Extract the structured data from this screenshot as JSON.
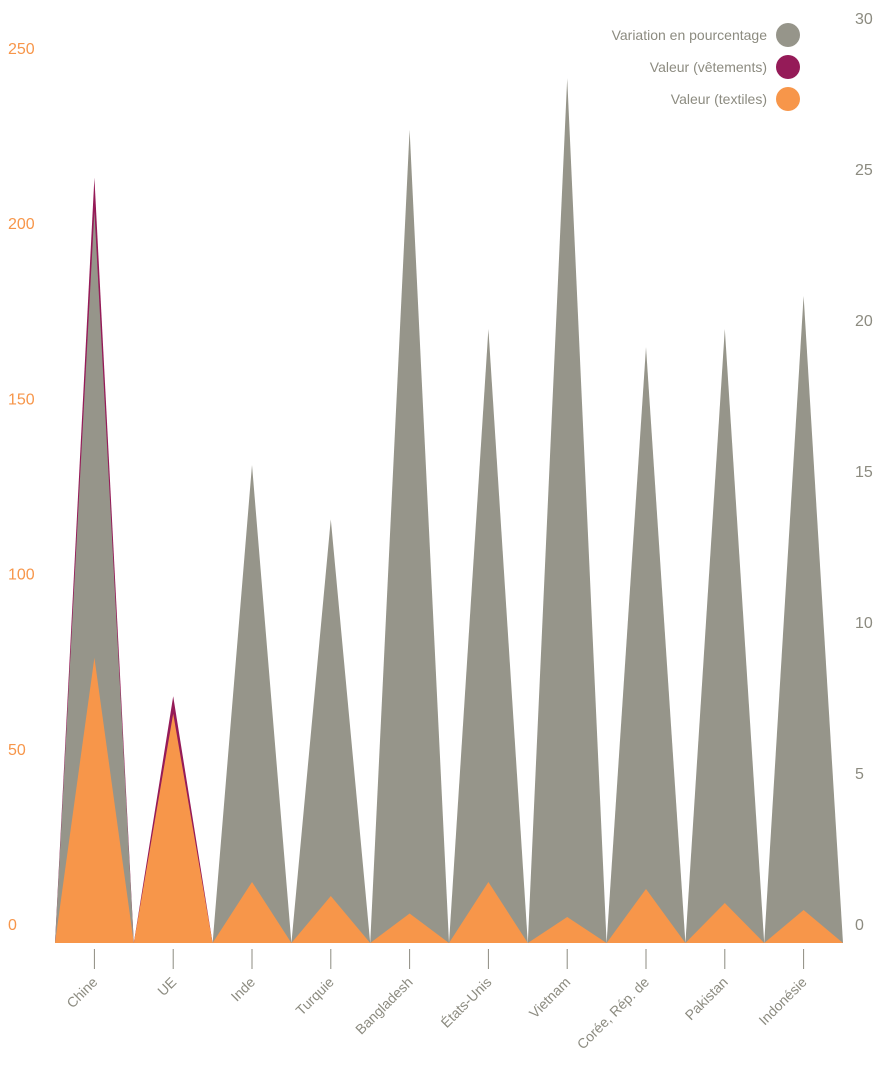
{
  "chart_data": {
    "type": "area",
    "categories": [
      "Chine",
      "UE",
      "Inde",
      "Turquie",
      "Bangladesh",
      "États-Unis",
      "Vietnam",
      "Corée, Rép. de",
      "Pakistan",
      "Indonésie"
    ],
    "series": [
      {
        "name": "Variation en pourcentage",
        "axis": "right",
        "color": "#96958a",
        "values": [
          23.6,
          3.7,
          15.2,
          13.4,
          26.3,
          19.7,
          28.0,
          19.1,
          19.7,
          20.8
        ]
      },
      {
        "name": "Valeur (vêtements)",
        "axis": "left",
        "color": "#951b58",
        "values": [
          213,
          65,
          21,
          19,
          15,
          15,
          11,
          10,
          10,
          9
        ]
      },
      {
        "name": "Valeur (textiles)",
        "axis": "left",
        "color": "#f7964a",
        "values": [
          76,
          60,
          12,
          8,
          3,
          12,
          2,
          10,
          6,
          4
        ]
      }
    ],
    "draw_order": [
      "Valeur (vêtements)",
      "Variation en pourcentage",
      "Valeur (textiles)"
    ],
    "left_axis": {
      "ylim": [
        -6,
        256
      ],
      "ticks": [
        0,
        50,
        100,
        150,
        200,
        250
      ],
      "tick_labels": [
        "0",
        "50",
        "100",
        "150",
        "200",
        "250"
      ],
      "color": "#f7964a"
    },
    "right_axis": {
      "ylim": [
        -0.6,
        30.8
      ],
      "ticks": [
        0,
        5,
        10,
        15,
        20,
        25,
        30
      ],
      "tick_labels": [
        "0",
        "5",
        "10",
        "15",
        "20",
        "25",
        "30"
      ],
      "color": "#8c8b80"
    },
    "legend": {
      "position": "top-right",
      "entries": [
        {
          "label": "Variation en pourcentage",
          "color": "#96958a"
        },
        {
          "label": "Valeur (vêtements)",
          "color": "#951b58"
        },
        {
          "label": "Valeur (textiles)",
          "color": "#f7964a"
        }
      ]
    },
    "grid": false,
    "title": "",
    "xlabel": "",
    "ylabel": ""
  }
}
